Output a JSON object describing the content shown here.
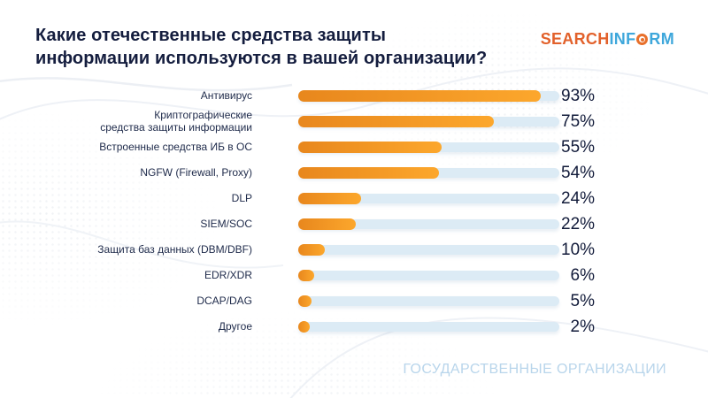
{
  "header": {
    "title": "Какие отечественные средства защиты\nинформации используются в вашей организации?",
    "logo": {
      "search": "SEARCH",
      "inf": "INF",
      "rm": "RM",
      "o_icon": "target-icon",
      "orange": "#e2612b",
      "blue": "#3ea7db"
    }
  },
  "chart_data": {
    "type": "bar",
    "orientation": "horizontal",
    "title": "Какие отечественные средства защиты информации используются в вашей организации?",
    "categories": [
      "Антивирус",
      "Криптографические\nсредства защиты информации",
      "Встроенные средства ИБ в ОС",
      "NGFW (Firewall, Proxy)",
      "DLP",
      "SIEM/SOC",
      "Защита баз данных (DBM/DBF)",
      "EDR/XDR",
      "DCAP/DAG",
      "Другое"
    ],
    "values": [
      93,
      75,
      55,
      54,
      24,
      22,
      10,
      6,
      5,
      2
    ],
    "value_labels": [
      "93%",
      "75%",
      "55%",
      "54%",
      "24%",
      "22%",
      "10%",
      "6%",
      "5%",
      "2%"
    ],
    "xlim": [
      0,
      100
    ],
    "grid": false,
    "legend": false,
    "value_label_position": "right",
    "bar_color_start": "#e8871d",
    "bar_color_end": "#fca72c",
    "track_color": "#dcebf5"
  },
  "footer": {
    "label": "ГОСУДАРСТВЕННЫЕ ОРГАНИЗАЦИИ",
    "color": "#b8d5eb"
  }
}
